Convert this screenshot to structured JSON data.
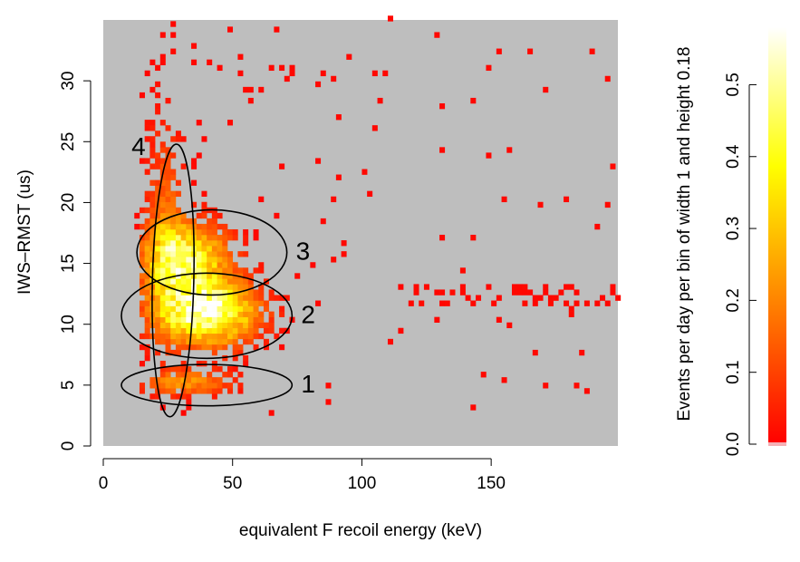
{
  "chart_data": {
    "type": "heatmap",
    "xlabel": "equivalent F recoil energy (keV)",
    "ylabel": "IWS–RMST (us)",
    "xlim": [
      0,
      199
    ],
    "ylim": [
      0,
      35
    ],
    "x_ticks": [
      0,
      50,
      100,
      150
    ],
    "x_tick_labels": [
      "0",
      "50",
      "100",
      "150"
    ],
    "y_ticks": [
      0,
      5,
      10,
      15,
      20,
      25,
      30
    ],
    "y_tick_labels": [
      "0",
      "5",
      "10",
      "15",
      "20",
      "25",
      "30"
    ],
    "background_color": "#bebebe",
    "bin_width": 1,
    "bin_height": 0.18,
    "colorbar": {
      "label": "Events per day per bin of width 1 and height 0.18",
      "range": [
        0,
        0.58
      ],
      "ticks": [
        0.0,
        0.1,
        0.2,
        0.3,
        0.4,
        0.5
      ],
      "tick_labels": [
        "0.0",
        "0.1",
        "0.2",
        "0.3",
        "0.4",
        "0.5"
      ],
      "colors_low_to_high": [
        "#ff0000",
        "#ff4000",
        "#ff8000",
        "#ffbf00",
        "#ffff00",
        "#ffff80",
        "#ffffff"
      ]
    },
    "density_clusters": [
      {
        "x": 40,
        "y": 11,
        "sx": 13,
        "sy": 1.8,
        "amplitude": 0.55
      },
      {
        "x": 32,
        "y": 15.5,
        "sx": 11,
        "sy": 2.0,
        "amplitude": 0.42
      },
      {
        "x": 32,
        "y": 5.2,
        "sx": 12,
        "sy": 0.7,
        "amplitude": 0.22
      },
      {
        "x": 24,
        "y": 18,
        "sx": 5,
        "sy": 6,
        "amplitude": 0.15
      }
    ],
    "sparse_band": {
      "x_from": 110,
      "x_to": 199,
      "y": 12.2,
      "y_spread": 1.0
    },
    "regions": [
      {
        "label": "1",
        "shape": "ellipse",
        "cx": 40,
        "cy": 5.0,
        "rx": 33,
        "ry": 1.7,
        "angle_deg": 0
      },
      {
        "label": "2",
        "shape": "ellipse",
        "cx": 40,
        "cy": 10.7,
        "rx": 33,
        "ry": 3.5,
        "angle_deg": 0
      },
      {
        "label": "3",
        "shape": "ellipse",
        "cx": 42,
        "cy": 15.9,
        "rx": 29,
        "ry": 3.5,
        "angle_deg": 0
      },
      {
        "label": "4",
        "shape": "ellipse",
        "cx": 27,
        "cy": 13.6,
        "rx": 8,
        "ry": 11.2,
        "angle_deg": 1.4
      }
    ]
  }
}
